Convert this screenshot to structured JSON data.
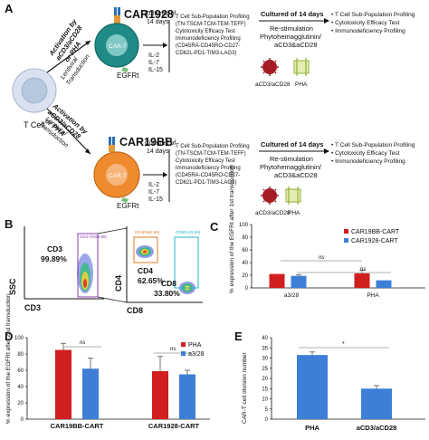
{
  "panelA": {
    "label": "A",
    "tcell_label": "T Cell",
    "top": {
      "activation_text": [
        "Activation by",
        "aCD3/aCD28",
        "or PHA"
      ],
      "transduction_text": [
        "Lentiviral",
        "Transduction"
      ],
      "car_name": "CAR1928",
      "cell_label": "CAR-T",
      "egfrt_label": "EGFRt",
      "culture_text": [
        "Cultured of",
        "14 days"
      ],
      "cytokines": [
        "IL-2",
        "IL-7",
        "IL-15"
      ],
      "profiling": [
        "·T Cell Sub-Population Profiling",
        "(TN-TSCM-TCM-TEM-TEFF)",
        "·Cytotoxicity Efficacy Test",
        "·Immunodeficiency Profiling",
        "(CD45RA-CD45RO-CD27-",
        "CD62L-PD1-TIM3-LAG3)"
      ],
      "culture2_text": "Cultured of 14 days",
      "restim_text": [
        "Re-stimulation",
        "Phytohemagglutinin/",
        "aCD3&aCD28"
      ],
      "results_list": [
        "• T Cell Sub-Population Profiling",
        "• Cytotoxicity Efficacy Test",
        "• Immunodeficiency Profiling"
      ],
      "icon1_label": "aCD3/aCD28",
      "icon2_label": "PHA"
    },
    "bottom": {
      "activation_text": [
        "Activation by",
        "aCD3/aCD28",
        "or PHA"
      ],
      "transduction_text": [
        "Lentiviral",
        "Transduction"
      ],
      "car_name": "CAR19BB",
      "cell_label": "CAR-T",
      "egfrt_label": "EGFRt",
      "culture_text": [
        "Cultured of",
        "14 days"
      ],
      "cytokines": [
        "IL-2",
        "IL-7",
        "IL-15"
      ],
      "profiling": [
        "·T Cell Sub-Population Profiling",
        "(TN-TSCM-TCM-TEM-TEFF)",
        "·Cytotoxicity Efficacy Test",
        "·Immunodeficiency Profiling",
        "(CD45RA-CD45RO-CD27-",
        "CD62L-PD1-TIM3-LAG3)"
      ],
      "culture2_text": "Cultured of 14 days",
      "restim_text": [
        "Re-stimulation",
        "Phytohemagglutinin/",
        "aCD3&aCD28"
      ],
      "results_list": [
        "• T Cell Sub-Population Profiling",
        "• Cytotoxicity Efficacy Test",
        "• Immunodeficiency Profiling"
      ],
      "icon1_label": "aCD3/aCD28",
      "icon2_label": "PHA"
    }
  },
  "panelB": {
    "label": "B",
    "left": {
      "gate_label": "CD3",
      "gate_percent": "99.89%",
      "gate_annotation": "CD3+(%99.89)",
      "ylabel": "SSC",
      "xlabel": "CD3"
    },
    "right": {
      "q1_label": "CD4",
      "q1_percent": "62.65%",
      "q2_label": "CD8",
      "q2_percent": "33.80%",
      "gate1_annotation": "CD4(%62.65)",
      "gate2_annotation": "CD8(%33.80)",
      "ylabel": "CD4",
      "xlabel": "CD8"
    }
  },
  "colors": {
    "red": "#d11f1f",
    "blue": "#3d7fd6",
    "teal": "#1f8a86",
    "orange": "#ef8a2f",
    "gray_cell": "#c9d7ea"
  },
  "chart_data": [
    {
      "panel": "C",
      "type": "bar",
      "ylabel": "% expression of the EGFRt after 1st transduction",
      "categories": [
        "a3/28",
        "PHA"
      ],
      "ylim": [
        0,
        100
      ],
      "yticks": [
        0,
        20,
        40,
        60,
        80,
        100
      ],
      "series": [
        {
          "name": "CAR19BB-CART",
          "color": "#d11f1f",
          "values": [
            22,
            23
          ],
          "errors": [
            0,
            5
          ]
        },
        {
          "name": "CAR1928-CART",
          "color": "#3d7fd6",
          "values": [
            19,
            12
          ],
          "errors": [
            2,
            0
          ]
        }
      ],
      "annotations": [
        "ns",
        "ns"
      ],
      "legend": "top-right"
    },
    {
      "panel": "D",
      "type": "bar",
      "ylabel": "% expression of the EGFRt after 2nd transduction",
      "categories": [
        "CAR19BB-CART",
        "CAR1928-CART"
      ],
      "ylim": [
        0,
        100
      ],
      "yticks": [
        0,
        20,
        40,
        60,
        80,
        100
      ],
      "series": [
        {
          "name": "PHA",
          "color": "#d11f1f",
          "values": [
            85,
            59
          ],
          "errors": [
            8,
            18
          ]
        },
        {
          "name": "a3/28",
          "color": "#3d7fd6",
          "values": [
            62,
            55
          ],
          "errors": [
            13,
            5
          ]
        }
      ],
      "annotations": [
        "ns",
        "ns"
      ],
      "legend": "top-right"
    },
    {
      "panel": "E",
      "type": "bar",
      "ylabel": "CAR-T cell division number",
      "categories": [
        "PHA",
        "aCD3/aCD28"
      ],
      "ylim": [
        0,
        40
      ],
      "yticks": [
        0,
        5,
        10,
        15,
        20,
        25,
        30,
        35,
        40
      ],
      "series": [
        {
          "name": "",
          "color": "#3d7fd6",
          "values": [
            31.5,
            15
          ],
          "errors": [
            1.5,
            1.5
          ]
        }
      ],
      "annotations": [
        "*"
      ]
    }
  ]
}
